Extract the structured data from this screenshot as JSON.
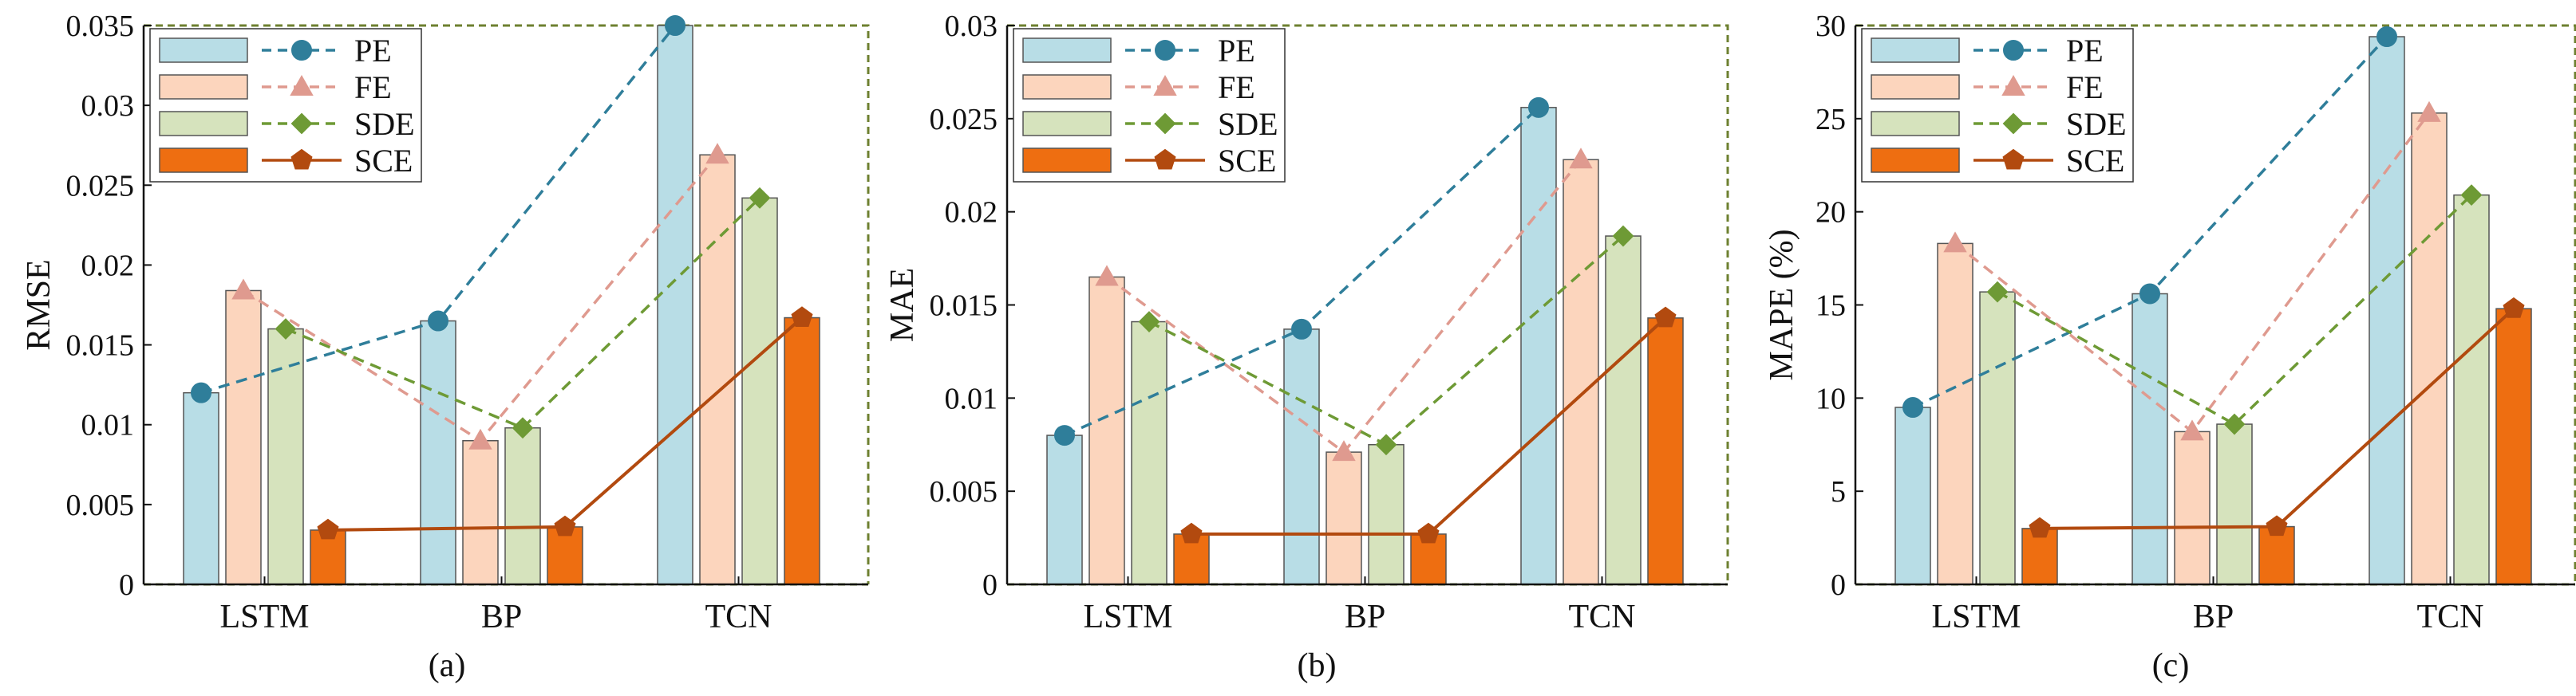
{
  "figure": {
    "subplot_count": 3
  },
  "colors": {
    "PE_bar": "#b8dde6",
    "FE_bar": "#fcd5bd",
    "SDE_bar": "#d6e3bd",
    "SCE_bar": "#ee6e11",
    "PE_line": "#2f7e9a",
    "FE_line": "#df9a8f",
    "SDE_line": "#6e9a35",
    "SCE_line": "#b24a0f",
    "bar_edge": "#555555",
    "frame_dash": "#6e8030"
  },
  "chart_data": [
    {
      "type": "bar",
      "panel_label": "(a)",
      "ylabel": "RMSE",
      "xlabel": "",
      "categories": [
        "LSTM",
        "BP",
        "TCN"
      ],
      "ylim": [
        0,
        0.035
      ],
      "yticks": [
        0,
        0.005,
        0.01,
        0.015,
        0.02,
        0.025,
        0.03,
        0.035
      ],
      "ytick_labels": [
        "0",
        "0.005",
        "0.01",
        "0.015",
        "0.02",
        "0.025",
        "0.03",
        "0.035"
      ],
      "legend_position": "top-left",
      "series": [
        {
          "name": "PE",
          "marker": "circle",
          "values": [
            0.012,
            0.0165,
            0.035
          ]
        },
        {
          "name": "FE",
          "marker": "triangle",
          "values": [
            0.0184,
            0.009,
            0.0269
          ]
        },
        {
          "name": "SDE",
          "marker": "diamond",
          "values": [
            0.016,
            0.0098,
            0.0242
          ]
        },
        {
          "name": "SCE",
          "marker": "pentagon",
          "values": [
            0.0034,
            0.0036,
            0.0167
          ]
        }
      ]
    },
    {
      "type": "bar",
      "panel_label": "(b)",
      "ylabel": "MAE",
      "xlabel": "",
      "categories": [
        "LSTM",
        "BP",
        "TCN"
      ],
      "ylim": [
        0,
        0.03
      ],
      "yticks": [
        0,
        0.005,
        0.01,
        0.015,
        0.02,
        0.025,
        0.03
      ],
      "ytick_labels": [
        "0",
        "0.005",
        "0.01",
        "0.015",
        "0.02",
        "0.025",
        "0.03"
      ],
      "legend_position": "top-left",
      "series": [
        {
          "name": "PE",
          "marker": "circle",
          "values": [
            0.008,
            0.0137,
            0.0256
          ]
        },
        {
          "name": "FE",
          "marker": "triangle",
          "values": [
            0.0165,
            0.0071,
            0.0228
          ]
        },
        {
          "name": "SDE",
          "marker": "diamond",
          "values": [
            0.0141,
            0.0075,
            0.0187
          ]
        },
        {
          "name": "SCE",
          "marker": "pentagon",
          "values": [
            0.0027,
            0.0027,
            0.0143
          ]
        }
      ]
    },
    {
      "type": "bar",
      "panel_label": "(c)",
      "ylabel": "MAPE (%)",
      "xlabel": "",
      "categories": [
        "LSTM",
        "BP",
        "TCN"
      ],
      "ylim": [
        0,
        30
      ],
      "yticks": [
        0,
        5,
        10,
        15,
        20,
        25,
        30
      ],
      "ytick_labels": [
        "0",
        "5",
        "10",
        "15",
        "20",
        "25",
        "30"
      ],
      "legend_position": "top-left",
      "series": [
        {
          "name": "PE",
          "marker": "circle",
          "values": [
            9.5,
            15.6,
            29.4
          ]
        },
        {
          "name": "FE",
          "marker": "triangle",
          "values": [
            18.3,
            8.2,
            25.3
          ]
        },
        {
          "name": "SDE",
          "marker": "diamond",
          "values": [
            15.7,
            8.6,
            20.9
          ]
        },
        {
          "name": "SCE",
          "marker": "pentagon",
          "values": [
            3.0,
            3.1,
            14.8
          ]
        }
      ]
    }
  ]
}
